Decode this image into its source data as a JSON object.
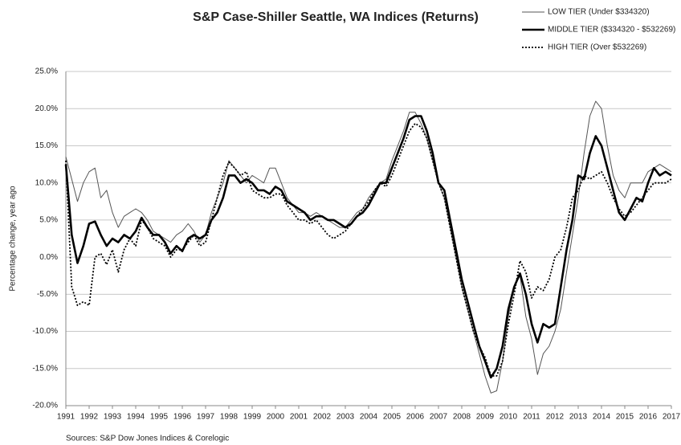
{
  "chart_data": {
    "type": "line",
    "title": "S&P Case-Shiller Seattle, WA Indices (Returns)",
    "y_label": "Percentage change, year ago",
    "source": "Sources: S&P Dow Jones Indices & Corelogic",
    "x": [
      1991,
      1991.25,
      1991.5,
      1991.75,
      1992,
      1992.25,
      1992.5,
      1992.75,
      1993,
      1993.25,
      1993.5,
      1993.75,
      1994,
      1994.25,
      1994.5,
      1994.75,
      1995,
      1995.25,
      1995.5,
      1995.75,
      1996,
      1996.25,
      1996.5,
      1996.75,
      1997,
      1997.25,
      1997.5,
      1997.75,
      1998,
      1998.25,
      1998.5,
      1998.75,
      1999,
      1999.25,
      1999.5,
      1999.75,
      2000,
      2000.25,
      2000.5,
      2000.75,
      2001,
      2001.25,
      2001.5,
      2001.75,
      2002,
      2002.25,
      2002.5,
      2002.75,
      2003,
      2003.25,
      2003.5,
      2003.75,
      2004,
      2004.25,
      2004.5,
      2004.75,
      2005,
      2005.25,
      2005.5,
      2005.75,
      2006,
      2006.25,
      2006.5,
      2006.75,
      2007,
      2007.25,
      2007.5,
      2007.75,
      2008,
      2008.25,
      2008.5,
      2008.75,
      2009,
      2009.25,
      2009.5,
      2009.75,
      2010,
      2010.25,
      2010.5,
      2010.75,
      2011,
      2011.25,
      2011.5,
      2011.75,
      2012,
      2012.25,
      2012.5,
      2012.75,
      2013,
      2013.25,
      2013.5,
      2013.75,
      2014,
      2014.25,
      2014.5,
      2014.75,
      2015,
      2015.25,
      2015.5,
      2015.75,
      2016,
      2016.25,
      2016.5,
      2016.75,
      2017
    ],
    "series": [
      {
        "name": "LOW TIER (Under $334320)",
        "color": "#555555",
        "width": 1,
        "style": "solid",
        "values": [
          13.5,
          10.5,
          7.5,
          10,
          11.5,
          12,
          8,
          9,
          6,
          4,
          5.5,
          6,
          6.5,
          6,
          5,
          3.5,
          3,
          2.5,
          2,
          3,
          3.5,
          4.5,
          3.5,
          2,
          3,
          6,
          8,
          10,
          13,
          12,
          11,
          10,
          11,
          10.5,
          10,
          12,
          12,
          10,
          8,
          7,
          6,
          6,
          5.5,
          6,
          5.5,
          5,
          4.5,
          4,
          4,
          5,
          6,
          6.5,
          8,
          9,
          10,
          10.5,
          13,
          15,
          17,
          19.5,
          19.5,
          18,
          16,
          13,
          10,
          8,
          4,
          0,
          -4,
          -7,
          -10,
          -13,
          -16,
          -18.3,
          -18,
          -14,
          -8,
          -4,
          -2.5,
          -8,
          -11,
          -15.8,
          -13,
          -12,
          -10,
          -7,
          -2,
          3,
          8,
          14,
          19,
          21,
          20,
          15,
          11,
          9,
          8,
          10,
          10,
          10,
          11.5,
          12,
          12.5,
          12,
          11.5
        ]
      },
      {
        "name": "MIDDLE TIER ($334320 - $532269)",
        "color": "#000000",
        "width": 2.6,
        "style": "solid",
        "values": [
          12.5,
          3,
          -0.8,
          1.5,
          4.5,
          4.8,
          3,
          1.5,
          2.5,
          2,
          3,
          2.5,
          3.5,
          5.3,
          4,
          3,
          3,
          2,
          0.5,
          1.5,
          0.8,
          2.5,
          3,
          2.5,
          3,
          5,
          6,
          8,
          11,
          11,
          10,
          10.5,
          10,
          9,
          9,
          8.5,
          9.5,
          9,
          7.5,
          7,
          6.5,
          6,
          5,
          5.5,
          5.5,
          5,
          5,
          4.5,
          4,
          4.5,
          5.5,
          6,
          7,
          8.5,
          10,
          10,
          12,
          14,
          16,
          18.5,
          19,
          19,
          17,
          14,
          10,
          9,
          5,
          1,
          -3,
          -6,
          -9,
          -12,
          -14,
          -16.2,
          -15,
          -12,
          -7,
          -4,
          -2.2,
          -5,
          -9,
          -11.5,
          -9,
          -9.5,
          -9,
          -4,
          1,
          5,
          11,
          10.5,
          14,
          16.3,
          15,
          12,
          9,
          6,
          5,
          6.5,
          8,
          7.5,
          10,
          12,
          11,
          11.5,
          11
        ]
      },
      {
        "name": "HIGH TIER (Over $532269)",
        "color": "#000000",
        "width": 1.8,
        "style": "dotted",
        "values": [
          13,
          -4,
          -6.5,
          -6,
          -6.5,
          0,
          0.5,
          -1,
          1,
          -2,
          1,
          2.5,
          1.5,
          5,
          4,
          2.5,
          2,
          1.5,
          0,
          1,
          1,
          2,
          3,
          1.5,
          2,
          5,
          8,
          11,
          12.8,
          12,
          11,
          11.5,
          9,
          8.5,
          8,
          8,
          8.5,
          8.5,
          7,
          6,
          5,
          5,
          4.5,
          5,
          4,
          3,
          2.5,
          3,
          3.5,
          4.5,
          5.5,
          6.5,
          7.5,
          9,
          10,
          9.5,
          11,
          13,
          15,
          17,
          18,
          17.5,
          16,
          13,
          10,
          8,
          4,
          0,
          -4,
          -7,
          -10,
          -12,
          -13.5,
          -16,
          -16,
          -14,
          -9,
          -5,
          -0.5,
          -2,
          -5.5,
          -4,
          -4.5,
          -3,
          0,
          1,
          4,
          8,
          9,
          11,
          10.5,
          11,
          11.5,
          10,
          8,
          6.5,
          5.5,
          6,
          7,
          8,
          9,
          10,
          10,
          10,
          10.5
        ]
      }
    ],
    "xlim": [
      1991,
      2017
    ],
    "xticks": [
      1991,
      1992,
      1993,
      1994,
      1995,
      1996,
      1997,
      1998,
      1999,
      2000,
      2001,
      2002,
      2003,
      2004,
      2005,
      2006,
      2007,
      2008,
      2009,
      2010,
      2011,
      2012,
      2013,
      2014,
      2015,
      2016,
      2017
    ],
    "ylim": [
      -20,
      25
    ],
    "yticks": [
      {
        "value": -20,
        "label": "-20.0%"
      },
      {
        "value": -15,
        "label": "-15.0%"
      },
      {
        "value": -10,
        "label": "-10.0%"
      },
      {
        "value": -5,
        "label": "-5.0%"
      },
      {
        "value": 0,
        "label": "0.0%"
      },
      {
        "value": 5,
        "label": "5.0%"
      },
      {
        "value": 10,
        "label": "10.0%"
      },
      {
        "value": 15,
        "label": "15.0%"
      },
      {
        "value": 20,
        "label": "20.0%"
      },
      {
        "value": 25,
        "label": "25.0%"
      }
    ],
    "grid": true,
    "legend": "top-right"
  }
}
